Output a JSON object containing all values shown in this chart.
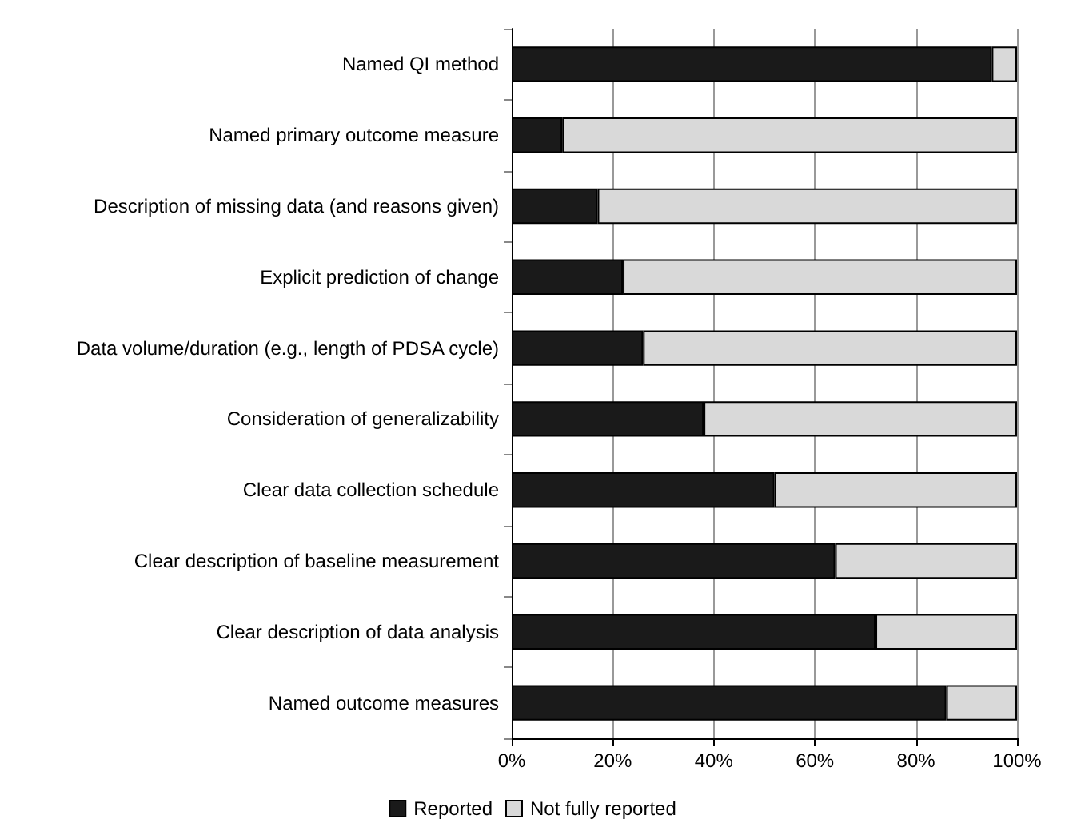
{
  "chart_data": {
    "type": "bar",
    "orientation": "horizontal",
    "stacked": true,
    "categories": [
      "Named QI method",
      "Named primary outcome measure",
      "Description of missing data (and reasons given)",
      "Explicit prediction of change",
      "Data volume/duration (e.g., length of PDSA cycle)",
      "Consideration of generalizability",
      "Clear data collection schedule",
      "Clear description of baseline measurement",
      "Clear description of data analysis",
      "Named outcome measures"
    ],
    "series": [
      {
        "name": "Reported",
        "color": "#1a1a1a",
        "values": [
          95,
          10,
          17,
          22,
          26,
          38,
          52,
          64,
          72,
          86
        ]
      },
      {
        "name": "Not fully reported",
        "color": "#d9d9d9",
        "values": [
          5,
          90,
          83,
          78,
          74,
          62,
          48,
          36,
          28,
          14
        ]
      }
    ],
    "xlim": [
      0,
      100
    ],
    "xticks": [
      {
        "value": 0,
        "label": "0%"
      },
      {
        "value": 20,
        "label": "20%"
      },
      {
        "value": 40,
        "label": "40%"
      },
      {
        "value": 60,
        "label": "60%"
      },
      {
        "value": 80,
        "label": "80%"
      },
      {
        "value": 100,
        "label": "100%"
      }
    ],
    "grid": "x",
    "legend": "bottom"
  }
}
